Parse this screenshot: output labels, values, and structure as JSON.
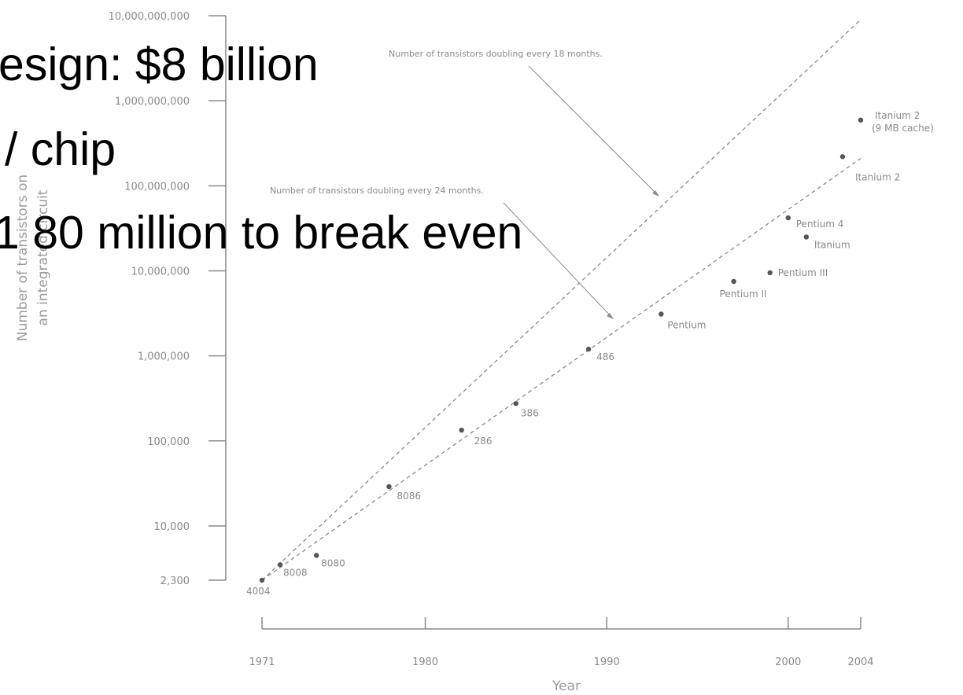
{
  "slide_overlay": [
    "esign: $8 billion",
    "/ chip",
    "1 80 million to break even"
  ],
  "chart_data": {
    "type": "scatter",
    "xlabel": "Year",
    "ylabel_line1": "Number of transistors on",
    "ylabel_line2": "an integrated circuit",
    "x_ticks": [
      1971,
      1980,
      1990,
      2000,
      2004
    ],
    "y_ticks": [
      {
        "value": 10000000000,
        "label": "10,000,000,000"
      },
      {
        "value": 1000000000,
        "label": "1,000,000,000"
      },
      {
        "value": 100000000,
        "label": "100,000,000"
      },
      {
        "value": 10000000,
        "label": "10,000,000"
      },
      {
        "value": 1000000,
        "label": "1,000,000"
      },
      {
        "value": 100000,
        "label": "100,000"
      },
      {
        "value": 10000,
        "label": "10,000"
      },
      {
        "value": 2300,
        "label": "2,300"
      }
    ],
    "xlim": [
      1971,
      2004
    ],
    "ylog": true,
    "grid": false,
    "points": [
      {
        "name": "4004",
        "x": 1971,
        "y": 2300
      },
      {
        "name": "8008",
        "x": 1972,
        "y": 3500
      },
      {
        "name": "8080",
        "x": 1974,
        "y": 4500
      },
      {
        "name": "8086",
        "x": 1978,
        "y": 29000
      },
      {
        "name": "286",
        "x": 1982,
        "y": 134000
      },
      {
        "name": "386",
        "x": 1985,
        "y": 275000
      },
      {
        "name": "486",
        "x": 1989,
        "y": 1200000
      },
      {
        "name": "Pentium",
        "x": 1993,
        "y": 3100000
      },
      {
        "name": "Pentium II",
        "x": 1997,
        "y": 7500000
      },
      {
        "name": "Pentium III",
        "x": 1999,
        "y": 9500000
      },
      {
        "name": "Pentium 4",
        "x": 2000,
        "y": 42000000
      },
      {
        "name": "Itanium",
        "x": 2001,
        "y": 25000000
      },
      {
        "name": "Itanium 2",
        "x": 2003,
        "y": 220000000
      },
      {
        "name": "Itanium 2 (9 MB cache)",
        "x": 2004,
        "y": 592000000
      }
    ],
    "trend_lines": [
      {
        "name": "Number of transistors doubling every 18 months.",
        "from": [
          1971,
          2300
        ],
        "to": [
          2004,
          9000000000
        ]
      },
      {
        "name": "Number of transistors doubling every 24 months.",
        "from": [
          1971,
          2300
        ],
        "to": [
          2004,
          210000000
        ]
      }
    ]
  },
  "colors": {
    "axis": "#8a8a8a",
    "marks": "#555555",
    "overlay_text": "#000000",
    "background": "#ffffff"
  }
}
